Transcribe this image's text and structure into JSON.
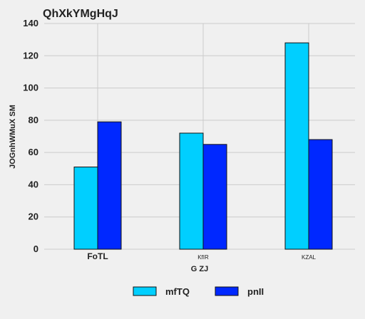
{
  "chart_data": {
    "type": "bar",
    "title": "QhXkYMgHqJ",
    "xlabel": "G ZJ",
    "ylabel": "JOGnhWMuX SM",
    "categories": [
      "FoTL",
      "KfIR",
      "KZAL"
    ],
    "series": [
      {
        "name": "mfTQ",
        "color": "#00cfff",
        "values": [
          51,
          72,
          128
        ]
      },
      {
        "name": "pnII",
        "color": "#0028ff",
        "values": [
          79,
          65,
          68
        ]
      }
    ],
    "ylim": [
      0,
      140
    ],
    "yticks": [
      0,
      20,
      40,
      60,
      80,
      100,
      120,
      140
    ],
    "grid": true,
    "legend_position": "bottom-center"
  }
}
